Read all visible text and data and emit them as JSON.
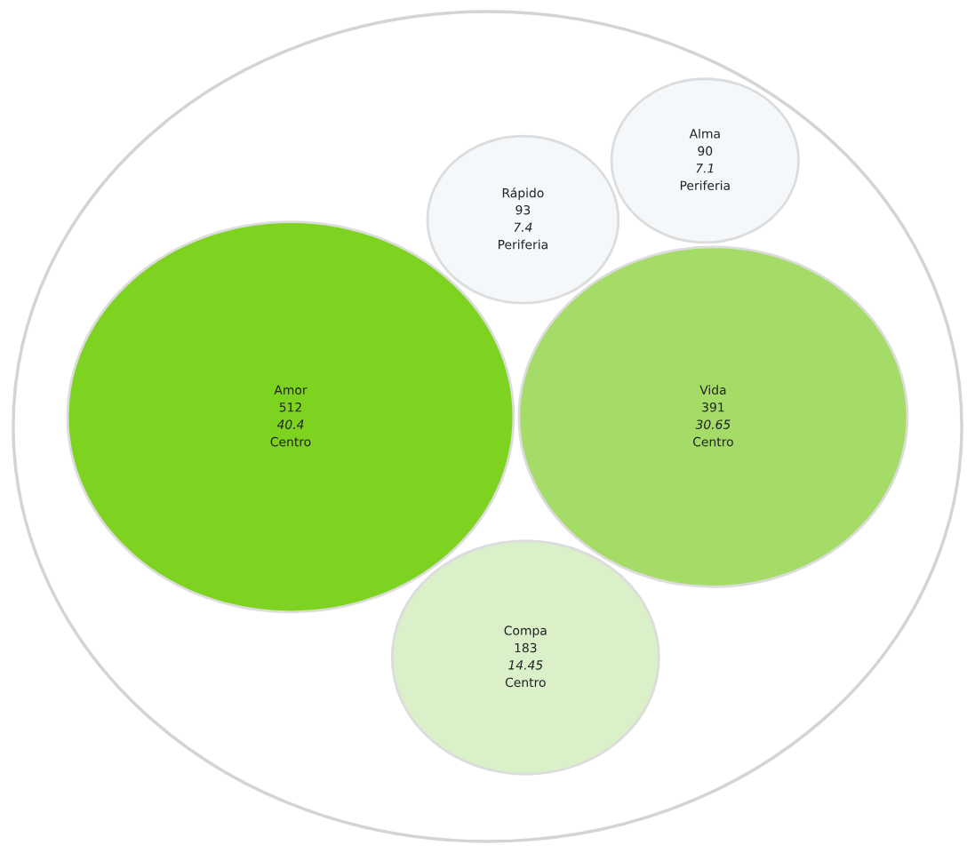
{
  "chart_data": {
    "type": "other",
    "categories": [
      "Alma",
      "Rápido",
      "Amor",
      "Vida",
      "Compa"
    ],
    "data_labels": true,
    "series": [
      {
        "values": [
          90,
          93,
          512,
          391,
          183
        ],
        "colors": [
          "#f4f8fb",
          "#f4f8fb",
          "#7ed321",
          "#a4dc67",
          "#d9f0c9"
        ]
      },
      {
        "values": [
          7.1,
          7.4,
          40.4,
          30.65,
          14.45
        ],
        "value_labels": [
          "7.1",
          "7.4",
          "40.4",
          "30.65",
          "14.45"
        ]
      }
    ],
    "annotations": [
      "Periferia",
      "Periferia",
      "Centro",
      "Centro",
      "Centro"
    ]
  }
}
